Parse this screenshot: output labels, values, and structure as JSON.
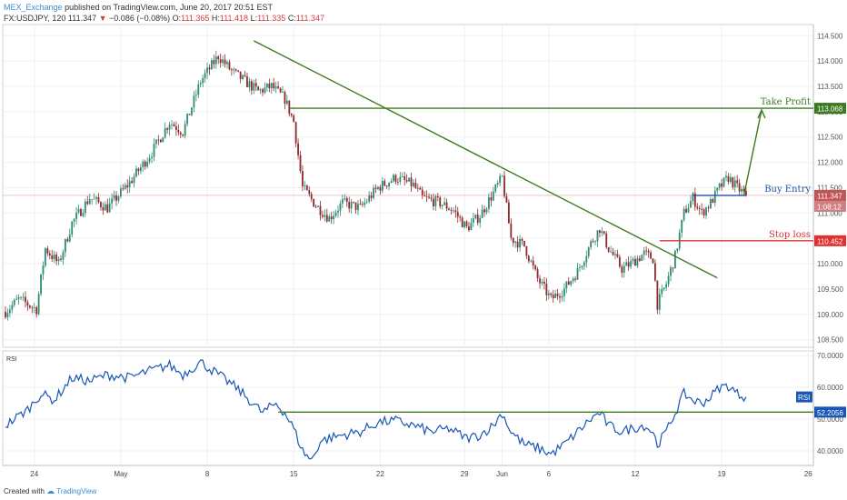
{
  "header": {
    "publisher": "MEX_Exchange",
    "published_text": "published on TradingView.com, June 20, 2017 20:51 EST",
    "symbol": "FX:USDJPY, 120",
    "last": "111.347",
    "change_arrow": "▼",
    "change": "−0.086 (−0.08%)",
    "o_label": "O:",
    "o_value": "111.365",
    "h_label": "H:",
    "h_value": "111.418",
    "l_label": "L:",
    "l_value": "111.335",
    "c_label": "C:",
    "c_value": "111.347"
  },
  "footer": {
    "created_with": "Created with",
    "brand": "TradingView"
  },
  "colors": {
    "bull": "#2e8b74",
    "bear": "#8c2a2a",
    "trendline": "#3d7a1f",
    "buy_line": "#1f4fa8",
    "stop_line": "#e03030",
    "rsi_line": "#1a56b5",
    "price_marker": "#c25555"
  },
  "chart_data": [
    {
      "type": "candlestick",
      "title": "FX:USDJPY, 120",
      "x_tick_labels": [
        "24",
        "May",
        "8",
        "15",
        "22",
        "29",
        "Jun",
        "6",
        "12",
        "19",
        "26"
      ],
      "y_tick_labels": [
        "108.500",
        "109.000",
        "109.500",
        "110.000",
        "110.500",
        "111.000",
        "111.500",
        "112.000",
        "112.500",
        "113.000",
        "113.500",
        "114.000",
        "114.500"
      ],
      "ylim": [
        108.35,
        114.72
      ],
      "grid": true,
      "anchors": [
        [
          0,
          109.05
        ],
        [
          6,
          109.3
        ],
        [
          14,
          109.1
        ],
        [
          18,
          110.3
        ],
        [
          24,
          110.0
        ],
        [
          30,
          110.8
        ],
        [
          38,
          111.3
        ],
        [
          46,
          111.1
        ],
        [
          56,
          111.6
        ],
        [
          66,
          112.2
        ],
        [
          74,
          112.8
        ],
        [
          80,
          112.6
        ],
        [
          88,
          113.6
        ],
        [
          96,
          114.1
        ],
        [
          102,
          113.8
        ],
        [
          108,
          113.6
        ],
        [
          114,
          113.4
        ],
        [
          120,
          113.5
        ],
        [
          126,
          113.25
        ],
        [
          130,
          112.8
        ],
        [
          134,
          111.5
        ],
        [
          140,
          111.15
        ],
        [
          146,
          110.9
        ],
        [
          152,
          111.2
        ],
        [
          160,
          111.1
        ],
        [
          168,
          111.5
        ],
        [
          176,
          111.7
        ],
        [
          184,
          111.55
        ],
        [
          188,
          111.3
        ],
        [
          196,
          111.2
        ],
        [
          202,
          111.05
        ],
        [
          208,
          110.7
        ],
        [
          214,
          110.95
        ],
        [
          220,
          111.4
        ],
        [
          224,
          111.7
        ],
        [
          228,
          110.5
        ],
        [
          234,
          110.35
        ],
        [
          240,
          109.7
        ],
        [
          246,
          109.3
        ],
        [
          252,
          109.5
        ],
        [
          258,
          109.85
        ],
        [
          264,
          110.4
        ],
        [
          268,
          110.7
        ],
        [
          272,
          110.3
        ],
        [
          278,
          109.9
        ],
        [
          282,
          110.0
        ],
        [
          288,
          110.2
        ],
        [
          292,
          110.1
        ],
        [
          294,
          109.2
        ],
        [
          298,
          109.6
        ],
        [
          302,
          110.15
        ],
        [
          306,
          111.0
        ],
        [
          310,
          111.3
        ],
        [
          314,
          111.0
        ],
        [
          318,
          111.2
        ],
        [
          322,
          111.5
        ],
        [
          326,
          111.7
        ],
        [
          330,
          111.5
        ],
        [
          334,
          111.35
        ]
      ],
      "last_price": 111.347,
      "buy_entry": 111.347,
      "stop_loss": 110.452,
      "take_profit": 113.068,
      "annotations": {
        "take_profit_label": "Take Profit",
        "take_profit_value": "113.068",
        "buy_entry_label": "Buy Entry",
        "buy_entry_value": "111.347",
        "stop_loss_label": "Stop loss",
        "stop_loss_value": "110.452",
        "countdown": "1:08:12"
      }
    },
    {
      "type": "line",
      "title": "RSI",
      "series_name": "RSI",
      "y_tick_labels": [
        "40.0000",
        "50.0000",
        "60.0000",
        "70.0000"
      ],
      "ylim": [
        35.4,
        71.5
      ],
      "level": 52.2056,
      "level_label": "52.2056",
      "last_label": "RSI",
      "anchors": [
        [
          0,
          48.0
        ],
        [
          10,
          53.0
        ],
        [
          16,
          58.0
        ],
        [
          22,
          56.0
        ],
        [
          30,
          63.0
        ],
        [
          38,
          62.0
        ],
        [
          46,
          64.0
        ],
        [
          56,
          63.0
        ],
        [
          64,
          65.0
        ],
        [
          74,
          67.0
        ],
        [
          80,
          64.0
        ],
        [
          88,
          68.0
        ],
        [
          96,
          64.0
        ],
        [
          104,
          60.0
        ],
        [
          110,
          56.0
        ],
        [
          116,
          52.0
        ],
        [
          122,
          55.0
        ],
        [
          126,
          52.0
        ],
        [
          130,
          47.0
        ],
        [
          134,
          40.0
        ],
        [
          138,
          37.0
        ],
        [
          142,
          43.0
        ],
        [
          146,
          44.0
        ],
        [
          152,
          45.0
        ],
        [
          160,
          46.0
        ],
        [
          168,
          49.0
        ],
        [
          176,
          49.5
        ],
        [
          184,
          48.0
        ],
        [
          192,
          46.0
        ],
        [
          200,
          47.0
        ],
        [
          208,
          44.0
        ],
        [
          214,
          45.0
        ],
        [
          220,
          48.0
        ],
        [
          224,
          52.0
        ],
        [
          228,
          46.0
        ],
        [
          234,
          42.0
        ],
        [
          240,
          41.0
        ],
        [
          246,
          39.0
        ],
        [
          252,
          42.0
        ],
        [
          258,
          46.0
        ],
        [
          264,
          50.0
        ],
        [
          268,
          52.0
        ],
        [
          272,
          48.0
        ],
        [
          278,
          46.0
        ],
        [
          282,
          47.0
        ],
        [
          288,
          48.0
        ],
        [
          292,
          46.0
        ],
        [
          294,
          42.0
        ],
        [
          298,
          46.0
        ],
        [
          302,
          52.0
        ],
        [
          306,
          58.0
        ],
        [
          310,
          56.0
        ],
        [
          314,
          55.0
        ],
        [
          318,
          57.0
        ],
        [
          322,
          60.0
        ],
        [
          326,
          60.5
        ],
        [
          330,
          58.0
        ],
        [
          334,
          57.0
        ]
      ]
    }
  ]
}
